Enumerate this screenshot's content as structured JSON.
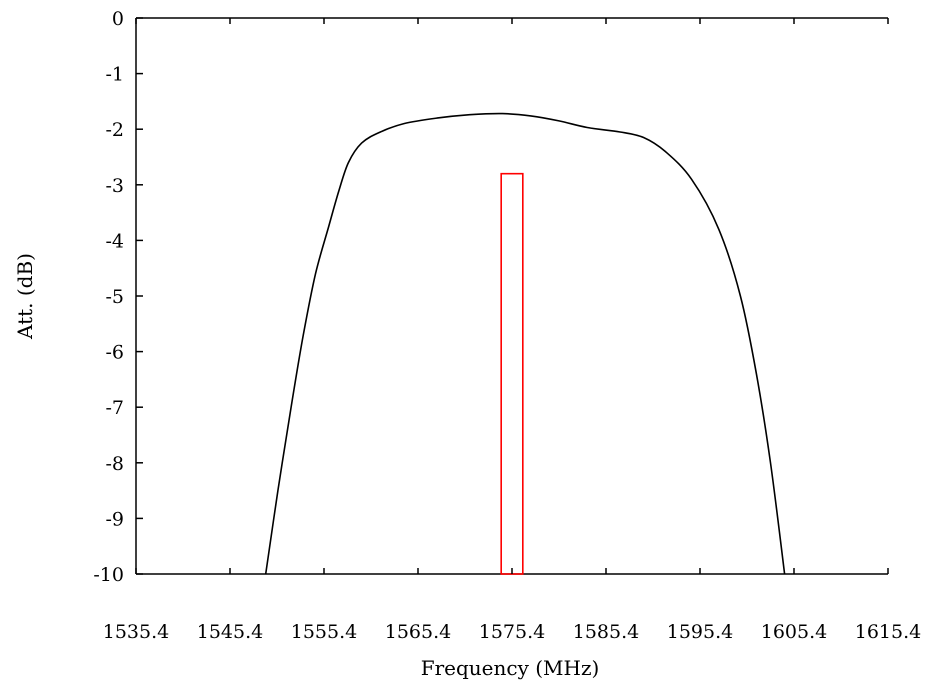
{
  "chart_data": {
    "type": "line",
    "title": "",
    "xlabel": "Frequency (MHz)",
    "ylabel": "Att. (dB)",
    "xlim": [
      1535.4,
      1615.4
    ],
    "ylim": [
      -10,
      0
    ],
    "x_ticks": [
      "1535.4",
      "1545.4",
      "1555.4",
      "1565.4",
      "1575.4",
      "1585.4",
      "1595.4",
      "1605.4",
      "1615.4"
    ],
    "y_ticks": [
      "0",
      "-1",
      "-2",
      "-3",
      "-4",
      "-5",
      "-6",
      "-7",
      "-8",
      "-9",
      "-10"
    ],
    "grid": false,
    "legend": "none",
    "colors": {
      "curve": "#000000",
      "marker": "#ff0000",
      "axes": "#000000"
    },
    "series": [
      {
        "values": [
          [
            1549.2,
            -10.0
          ],
          [
            1550.5,
            -8.5
          ],
          [
            1551.9,
            -7.0
          ],
          [
            1553.2,
            -5.7
          ],
          [
            1554.5,
            -4.6
          ],
          [
            1555.9,
            -3.75
          ],
          [
            1557.0,
            -3.1
          ],
          [
            1558.0,
            -2.6
          ],
          [
            1559.4,
            -2.25
          ],
          [
            1561.4,
            -2.05
          ],
          [
            1563.9,
            -1.9
          ],
          [
            1567.4,
            -1.8
          ],
          [
            1570.9,
            -1.74
          ],
          [
            1574.4,
            -1.72
          ],
          [
            1577.4,
            -1.76
          ],
          [
            1580.4,
            -1.85
          ],
          [
            1583.4,
            -1.97
          ],
          [
            1586.9,
            -2.05
          ],
          [
            1589.4,
            -2.15
          ],
          [
            1591.7,
            -2.4
          ],
          [
            1594.5,
            -2.9
          ],
          [
            1597.4,
            -3.8
          ],
          [
            1599.7,
            -5.0
          ],
          [
            1601.4,
            -6.4
          ],
          [
            1602.9,
            -8.0
          ],
          [
            1604.4,
            -10.0
          ]
        ]
      }
    ],
    "band_marker": {
      "x_start": 1574.25,
      "x_end": 1576.55,
      "y_top": -2.8,
      "y_bottom": -10.0
    }
  }
}
